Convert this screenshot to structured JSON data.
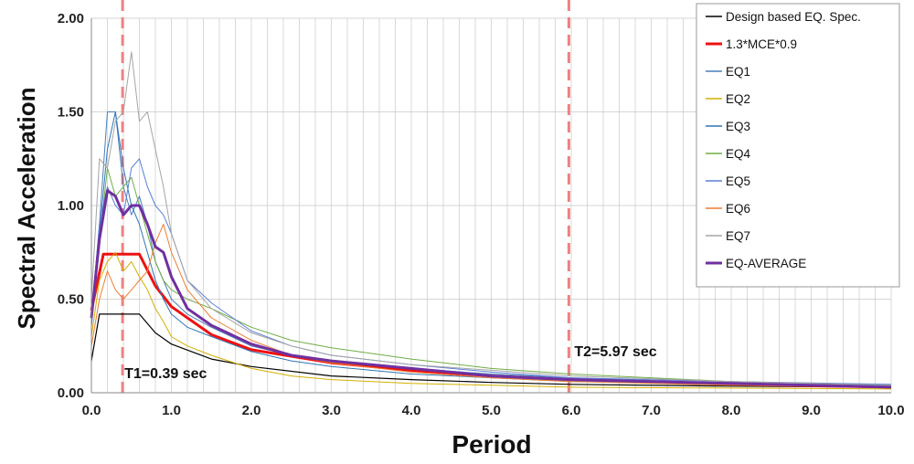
{
  "chart_data": {
    "type": "line",
    "title": "",
    "xlabel": "Period",
    "ylabel": "Spectral Acceleration",
    "xlim": [
      0,
      10
    ],
    "ylim": [
      0,
      2
    ],
    "x_ticks": [
      "0.0",
      "1.0",
      "2.0",
      "3.0",
      "4.0",
      "5.0",
      "6.0",
      "7.0",
      "8.0",
      "9.0",
      "10.0"
    ],
    "y_ticks": [
      "0.00",
      "0.50",
      "1.00",
      "1.50",
      "2.00"
    ],
    "grid": true,
    "legend_position": "top-right",
    "vlines": [
      {
        "x": 0.39,
        "label": "T1=0.39 sec",
        "color": "#f08080"
      },
      {
        "x": 5.97,
        "label": "T2=5.97 sec",
        "color": "#f08080"
      }
    ],
    "series": [
      {
        "name": "Design based EQ. Spec.",
        "color": "#000000",
        "width": 1.2,
        "x": [
          0,
          0.1,
          0.6,
          0.8,
          1.0,
          1.5,
          2.0,
          3.0,
          4.0,
          5.0,
          6.0,
          8.0,
          10.0
        ],
        "y": [
          0.17,
          0.42,
          0.42,
          0.32,
          0.26,
          0.18,
          0.14,
          0.09,
          0.07,
          0.055,
          0.045,
          0.035,
          0.03
        ]
      },
      {
        "name": "1.3*MCE*0.9",
        "color": "#ee1111",
        "width": 3,
        "x": [
          0,
          0.15,
          0.6,
          0.8,
          1.0,
          1.5,
          2.0,
          3.0,
          4.0,
          5.0,
          6.0,
          8.0,
          10.0
        ],
        "y": [
          0.44,
          0.74,
          0.74,
          0.57,
          0.46,
          0.31,
          0.23,
          0.16,
          0.12,
          0.09,
          0.07,
          0.045,
          0.03
        ]
      },
      {
        "name": "EQ1",
        "color": "#4a7ebb",
        "width": 1,
        "x": [
          0,
          0.1,
          0.2,
          0.3,
          0.4,
          0.5,
          0.6,
          0.7,
          0.8,
          0.9,
          1.0,
          1.2,
          1.5,
          2.0,
          2.5,
          3.0,
          4.0,
          5.0,
          6.0,
          8.0,
          10.0
        ],
        "y": [
          0.4,
          0.9,
          1.5,
          1.5,
          1.1,
          0.95,
          1.05,
          0.9,
          0.7,
          0.6,
          0.5,
          0.42,
          0.35,
          0.25,
          0.2,
          0.17,
          0.13,
          0.1,
          0.08,
          0.05,
          0.04
        ]
      },
      {
        "name": "EQ2",
        "color": "#d4b000",
        "width": 1,
        "x": [
          0,
          0.1,
          0.2,
          0.3,
          0.4,
          0.5,
          0.6,
          0.7,
          0.8,
          0.9,
          1.0,
          1.2,
          1.5,
          2.0,
          2.5,
          3.0,
          4.0,
          5.0,
          6.0,
          8.0,
          10.0
        ],
        "y": [
          0.3,
          0.6,
          0.7,
          0.75,
          0.65,
          0.7,
          0.62,
          0.55,
          0.45,
          0.38,
          0.3,
          0.25,
          0.2,
          0.13,
          0.09,
          0.07,
          0.05,
          0.04,
          0.03,
          0.025,
          0.02
        ]
      },
      {
        "name": "EQ3",
        "color": "#2e75b6",
        "width": 1,
        "x": [
          0,
          0.1,
          0.2,
          0.3,
          0.4,
          0.5,
          0.6,
          0.7,
          0.8,
          0.9,
          1.0,
          1.2,
          1.5,
          2.0,
          2.5,
          3.0,
          4.0,
          5.0,
          6.0,
          8.0,
          10.0
        ],
        "y": [
          0.35,
          0.85,
          1.3,
          1.5,
          1.2,
          1.0,
          0.9,
          0.75,
          0.6,
          0.5,
          0.42,
          0.35,
          0.3,
          0.22,
          0.17,
          0.14,
          0.1,
          0.08,
          0.06,
          0.05,
          0.04
        ]
      },
      {
        "name": "EQ4",
        "color": "#70ad47",
        "width": 1,
        "x": [
          0,
          0.1,
          0.2,
          0.3,
          0.4,
          0.5,
          0.6,
          0.7,
          0.8,
          0.9,
          1.0,
          1.2,
          1.5,
          2.0,
          2.5,
          3.0,
          4.0,
          5.0,
          6.0,
          8.0,
          10.0
        ],
        "y": [
          0.4,
          0.8,
          1.2,
          1.05,
          1.1,
          1.15,
          1.0,
          0.85,
          0.7,
          0.6,
          0.55,
          0.5,
          0.45,
          0.35,
          0.28,
          0.24,
          0.18,
          0.13,
          0.1,
          0.06,
          0.04
        ]
      },
      {
        "name": "EQ5",
        "color": "#5b7fd6",
        "width": 1,
        "x": [
          0,
          0.1,
          0.2,
          0.3,
          0.4,
          0.5,
          0.6,
          0.7,
          0.8,
          0.9,
          1.0,
          1.2,
          1.5,
          2.0,
          2.5,
          3.0,
          4.0,
          5.0,
          6.0,
          8.0,
          10.0
        ],
        "y": [
          0.4,
          0.9,
          1.1,
          1.0,
          0.95,
          1.2,
          1.25,
          1.1,
          1.0,
          0.95,
          0.85,
          0.6,
          0.48,
          0.33,
          0.25,
          0.2,
          0.15,
          0.11,
          0.08,
          0.06,
          0.045
        ]
      },
      {
        "name": "EQ6",
        "color": "#ed7d31",
        "width": 1,
        "x": [
          0,
          0.1,
          0.2,
          0.3,
          0.4,
          0.5,
          0.6,
          0.7,
          0.8,
          0.9,
          1.0,
          1.2,
          1.5,
          2.0,
          2.5,
          3.0,
          4.0,
          5.0,
          6.0,
          8.0,
          10.0
        ],
        "y": [
          0.25,
          0.5,
          0.65,
          0.55,
          0.5,
          0.55,
          0.6,
          0.65,
          0.8,
          0.9,
          0.75,
          0.55,
          0.4,
          0.28,
          0.2,
          0.16,
          0.11,
          0.08,
          0.06,
          0.04,
          0.03
        ]
      },
      {
        "name": "EQ7",
        "color": "#a5a5a5",
        "width": 1,
        "x": [
          0,
          0.1,
          0.2,
          0.3,
          0.4,
          0.5,
          0.6,
          0.7,
          0.8,
          0.9,
          1.0,
          1.2,
          1.5,
          2.0,
          2.5,
          3.0,
          4.0,
          5.0,
          6.0,
          8.0,
          10.0
        ],
        "y": [
          0.5,
          1.25,
          1.2,
          1.45,
          1.5,
          1.82,
          1.45,
          1.5,
          1.3,
          1.1,
          0.85,
          0.6,
          0.45,
          0.32,
          0.25,
          0.2,
          0.15,
          0.12,
          0.09,
          0.06,
          0.04
        ]
      },
      {
        "name": "EQ-AVERAGE",
        "color": "#7030a0",
        "width": 3,
        "x": [
          0,
          0.1,
          0.2,
          0.3,
          0.4,
          0.5,
          0.6,
          0.7,
          0.8,
          0.9,
          1.0,
          1.2,
          1.5,
          2.0,
          2.5,
          3.0,
          4.0,
          5.0,
          6.0,
          8.0,
          10.0
        ],
        "y": [
          0.4,
          0.82,
          1.08,
          1.05,
          0.95,
          1.0,
          1.0,
          0.9,
          0.78,
          0.75,
          0.62,
          0.45,
          0.36,
          0.26,
          0.2,
          0.17,
          0.13,
          0.09,
          0.07,
          0.05,
          0.03
        ]
      }
    ]
  }
}
